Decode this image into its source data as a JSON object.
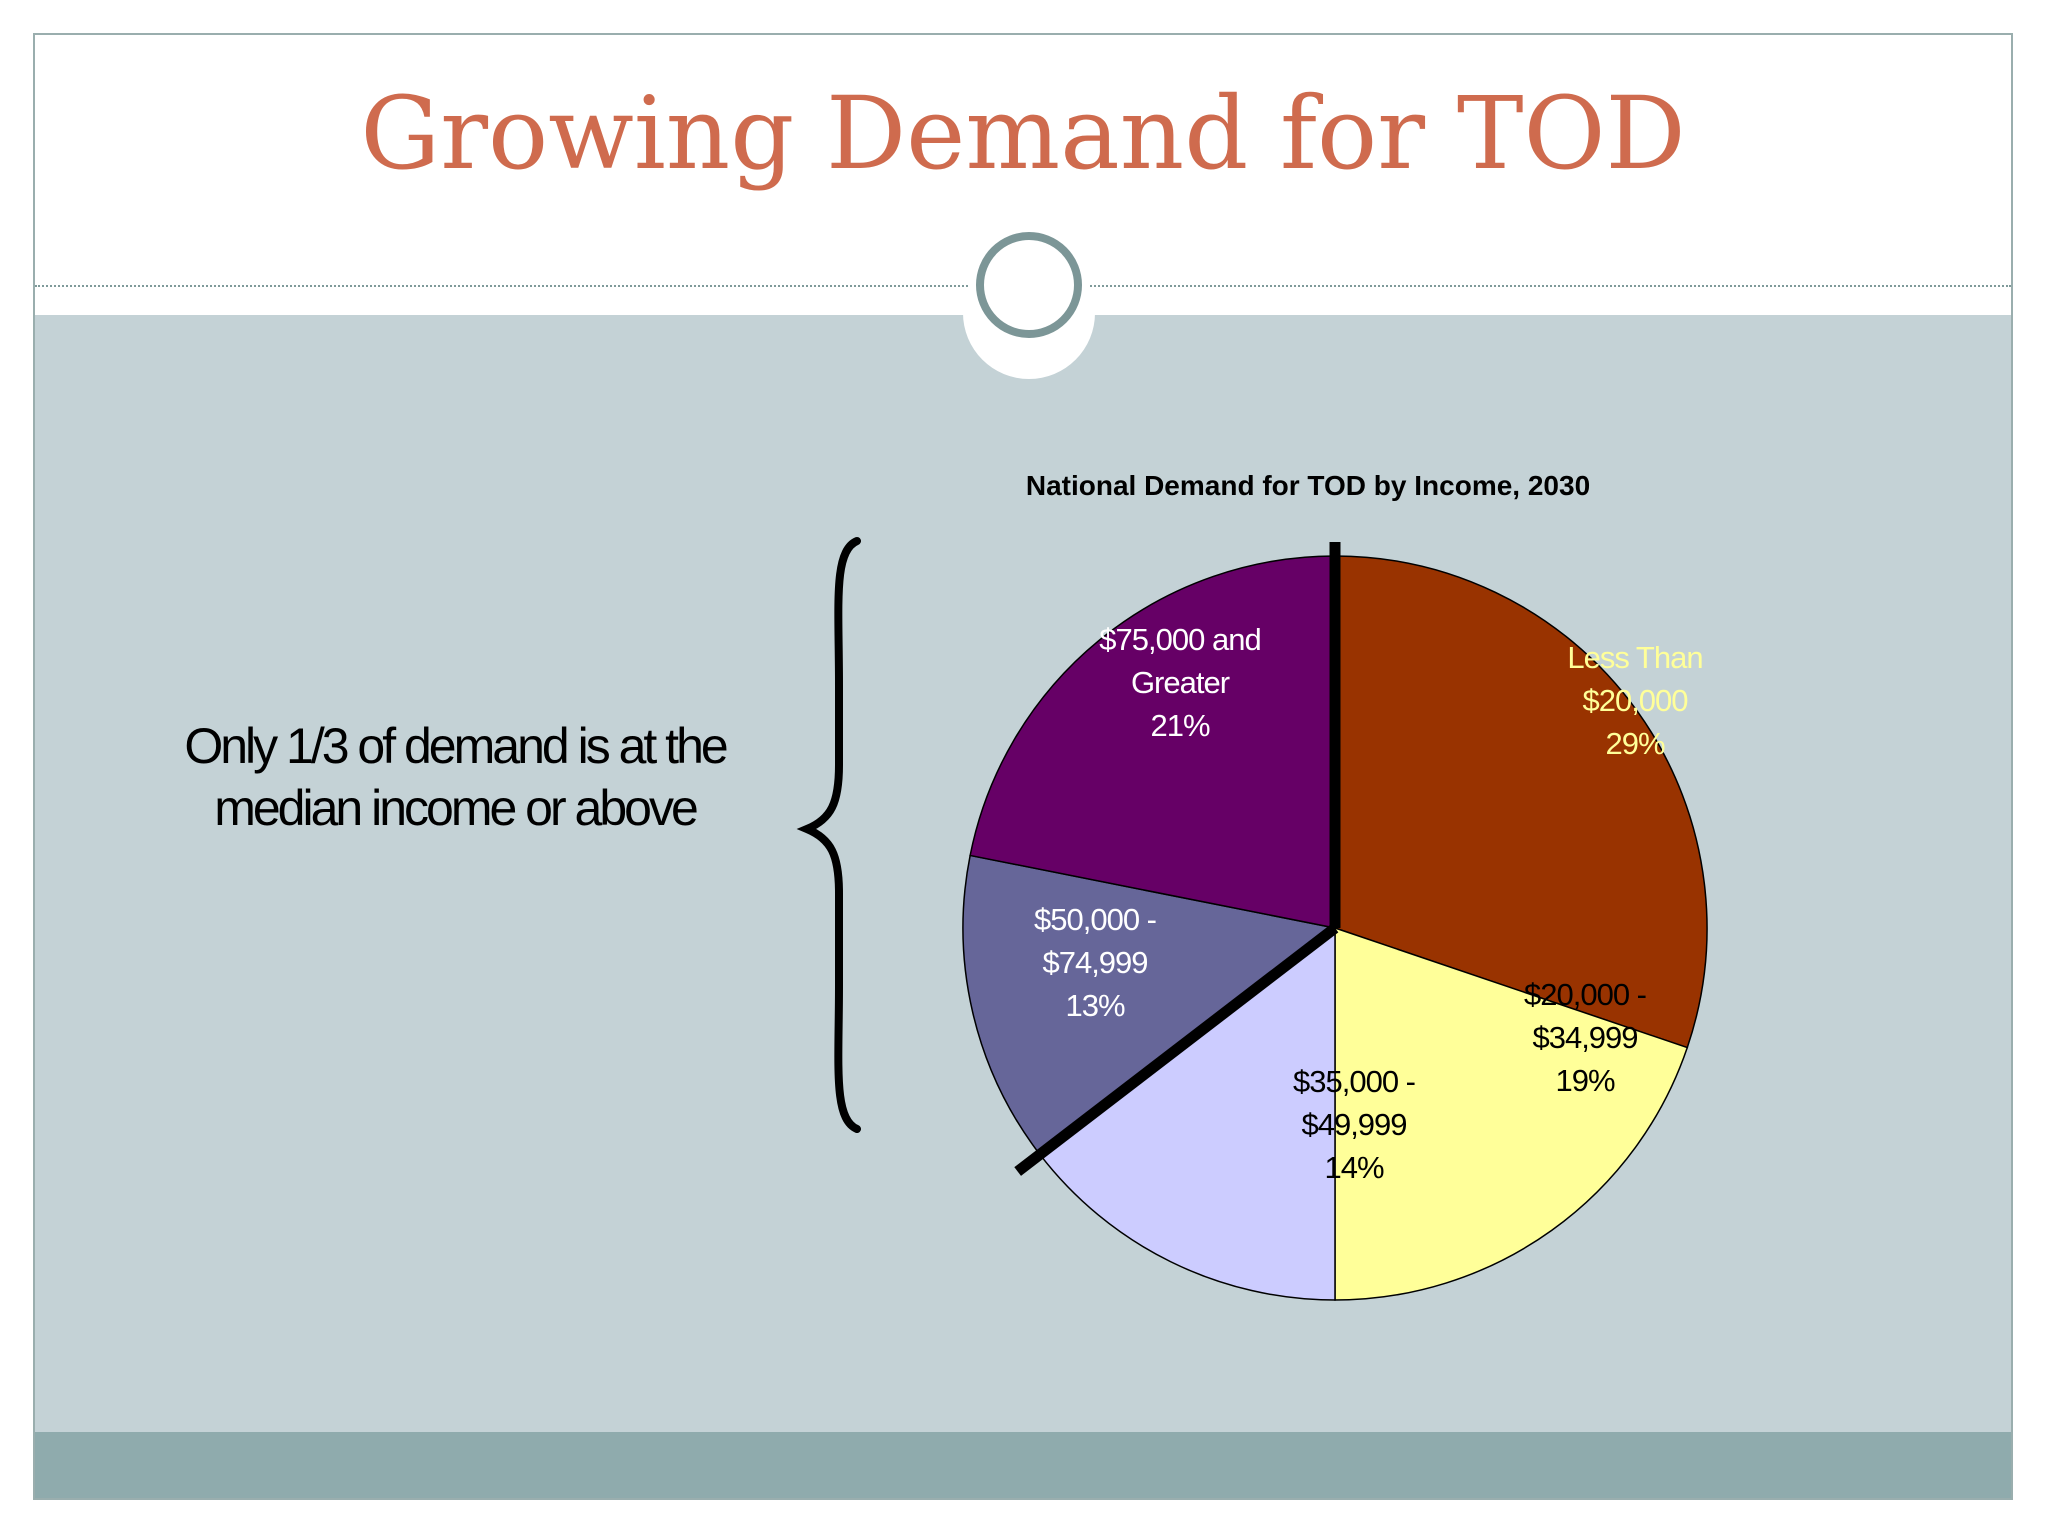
{
  "slide": {
    "title": "Growing Demand for TOD",
    "callout_lines": [
      "Only 1/3 of demand is at the",
      "median income or above"
    ]
  },
  "colors": {
    "title": "#cf6b4e",
    "content_background": "#c4d2d6",
    "footer_band": "#8fabad",
    "ring": "#7c9697"
  },
  "chart_data": {
    "type": "pie",
    "title": "National Demand for TOD by Income, 2030",
    "slices": [
      {
        "label_lines": [
          "Less Than",
          "$20,000",
          "29%"
        ],
        "value": 29,
        "color": "#993300",
        "text_color": "#ffff99"
      },
      {
        "label_lines": [
          "$20,000 -",
          "$34,999",
          "19%"
        ],
        "value": 19,
        "color": "#ffff99",
        "text_color": "#000000"
      },
      {
        "label_lines": [
          "$35,000 -",
          "$49,999",
          "14%"
        ],
        "value": 14,
        "color": "#ccccff",
        "text_color": "#000000"
      },
      {
        "label_lines": [
          "$50,000 -",
          "$74,999",
          "13%"
        ],
        "value": 13,
        "color": "#666699",
        "text_color": "#ffffff"
      },
      {
        "label_lines": [
          "$75,000 and",
          "Greater",
          "21%"
        ],
        "value": 21,
        "color": "#660066",
        "text_color": "#ffffff"
      }
    ],
    "start_angle_deg": 0,
    "direction": "clockwise",
    "divider_lines": "two thick black lines from center: up to 12 o'clock and down-left past the $35,000/$50,000 boundary"
  }
}
